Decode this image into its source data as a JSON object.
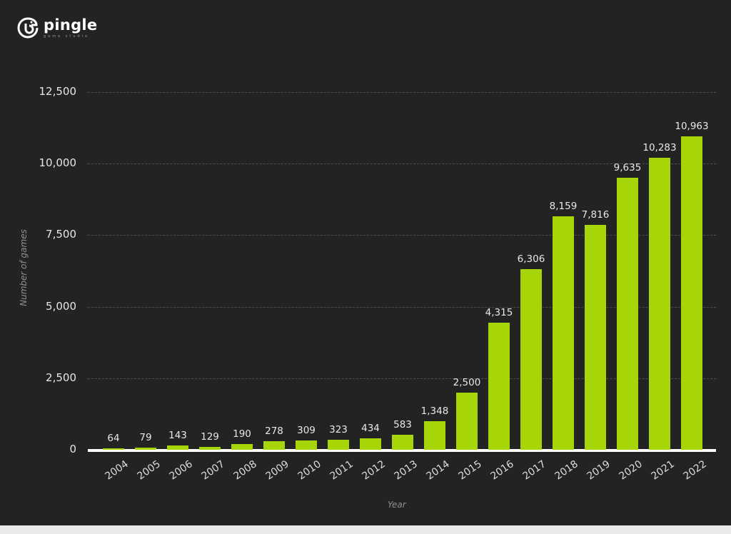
{
  "brand": {
    "name": "pingle",
    "subtitle": "game studio"
  },
  "chart_data": {
    "type": "bar",
    "title": "",
    "xlabel": "Year",
    "ylabel": "Number of games",
    "ylim": [
      0,
      12500
    ],
    "yticks": [
      0,
      2500,
      5000,
      7500,
      10000,
      12500
    ],
    "ytick_labels": [
      "0",
      "2,500",
      "5,000",
      "7,500",
      "10,000",
      "12,500"
    ],
    "grid": true,
    "legend": null,
    "bar_color": "#a6d607",
    "categories": [
      "2004",
      "2005",
      "2006",
      "2007",
      "2008",
      "2009",
      "2010",
      "2011",
      "2012",
      "2013",
      "2014",
      "2015",
      "2016",
      "2017",
      "2018",
      "2019",
      "2020",
      "2021",
      "2022"
    ],
    "values": [
      64,
      79,
      143,
      129,
      190,
      278,
      309,
      323,
      434,
      583,
      1348,
      2500,
      4315,
      6306,
      8159,
      7816,
      9635,
      10283,
      10963
    ],
    "value_labels": [
      "64",
      "79",
      "143",
      "129",
      "190",
      "278",
      "309",
      "323",
      "434",
      "583",
      "1,348",
      "2,500",
      "4,315",
      "6,306",
      "8,159",
      "7,816",
      "9,635",
      "10,283",
      "10,963"
    ],
    "drawn_bar_heights_approx": [
      40,
      70,
      150,
      110,
      210,
      290,
      320,
      340,
      400,
      520,
      1000,
      2000,
      4450,
      6300,
      8150,
      7850,
      9500,
      10200,
      10950
    ]
  }
}
